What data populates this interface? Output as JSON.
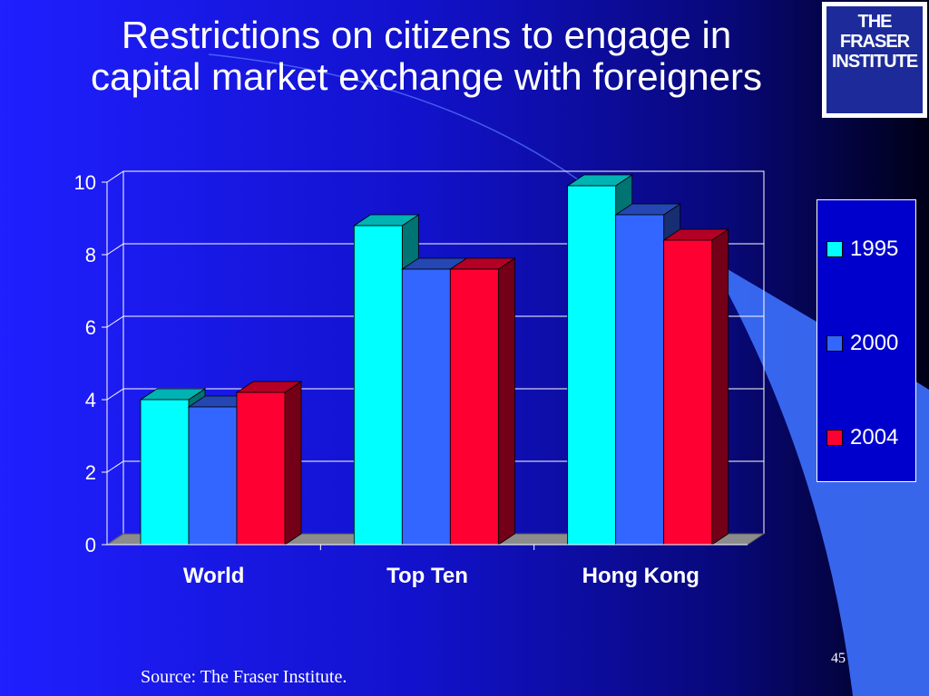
{
  "slide": {
    "title_line1": "Restrictions on citizens to engage in",
    "title_line2": "capital market exchange with foreigners",
    "logo_line1": "THE FRASER",
    "logo_line2": "INSTITUTE",
    "slide_number": "45",
    "source": "Source: The Fraser Institute."
  },
  "colors": {
    "series_1995": "#00ffff",
    "series_2000": "#3366ff",
    "series_2004": "#ff0033"
  },
  "chart_data": {
    "type": "bar",
    "title": "Restrictions on citizens to engage in capital market exchange with foreigners",
    "categories": [
      "World",
      "Top Ten",
      "Hong Kong"
    ],
    "series": [
      {
        "name": "1995",
        "values": [
          4.0,
          8.8,
          9.9
        ]
      },
      {
        "name": "2000",
        "values": [
          3.8,
          7.6,
          9.1
        ]
      },
      {
        "name": "2004",
        "values": [
          4.2,
          7.6,
          8.4
        ]
      }
    ],
    "yticks": [
      "0",
      "2",
      "4",
      "6",
      "8",
      "10"
    ],
    "ylim": [
      0,
      10
    ],
    "xlabel": "",
    "ylabel": "",
    "grid": true,
    "legend_position": "right"
  }
}
